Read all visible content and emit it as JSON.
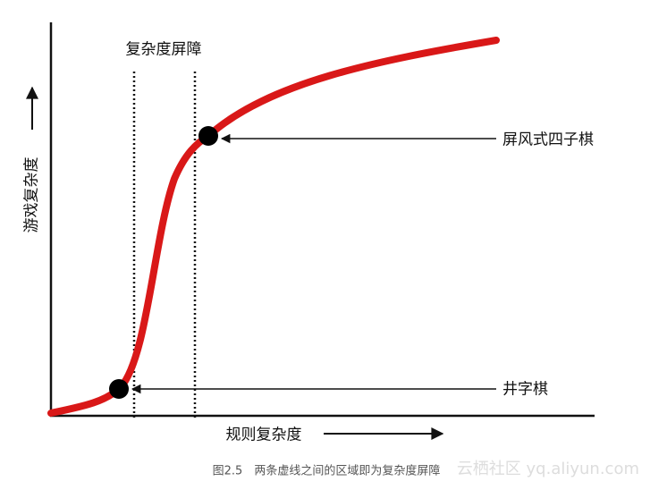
{
  "diagram": {
    "barrier_label": "复杂度屏障",
    "y_axis_label": "游戏复杂度",
    "x_axis_label": "规则复杂度",
    "points": [
      {
        "label": "屏风式四子棋"
      },
      {
        "label": "井字棋"
      }
    ]
  },
  "caption": "图2.5　两条虚线之间的区域即为复杂度屏障",
  "watermark": "云栖社区 yq.aliyun.com"
}
